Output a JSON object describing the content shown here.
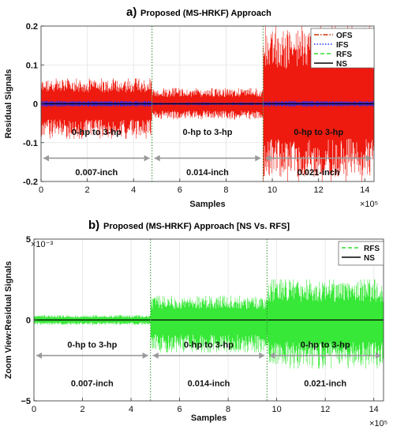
{
  "chart_data": [
    {
      "type": "line",
      "panel_letter": "a)",
      "title": "Proposed (MS-HRKF) Approach",
      "xlabel": "Samples",
      "ylabel": "Residual Signals",
      "x_exponent": "×10⁵",
      "xlim": [
        0,
        14.4
      ],
      "ylim": [
        -0.2,
        0.2
      ],
      "x_ticks": [
        0,
        2,
        4,
        6,
        8,
        10,
        12,
        14
      ],
      "x_tick_labels": [
        "0",
        "2",
        "4",
        "6",
        "8",
        "10",
        "12",
        "14"
      ],
      "y_ticks": [
        -0.2,
        -0.1,
        0,
        0.1,
        0.2
      ],
      "y_tick_labels": [
        "-0.2",
        "-0.1",
        "0",
        "0.1",
        "0.2"
      ],
      "grid": true,
      "legend_position": "top-right",
      "series": [
        {
          "name": "OFS",
          "color": "#cc3300",
          "dash": "dashdot"
        },
        {
          "name": "IFS",
          "color": "#1f2dff",
          "dash": "dotted"
        },
        {
          "name": "RFS",
          "color": "#33dd33",
          "dash": "dashed"
        },
        {
          "name": "NS",
          "color": "#000000",
          "dash": "solid"
        }
      ],
      "segments": [
        {
          "x_start": 0,
          "x_end": 4.8,
          "load_label": "0-hp to 3-hp",
          "fault_label": "0.007-inch",
          "envelope_max": 0.065,
          "envelope_min": -0.09
        },
        {
          "x_start": 4.8,
          "x_end": 9.6,
          "load_label": "0-hp to 3-hp",
          "fault_label": "0.014-inch",
          "envelope_max": 0.04,
          "envelope_min": -0.04
        },
        {
          "x_start": 9.6,
          "x_end": 14.4,
          "load_label": "0-hp to 3-hp",
          "fault_label": "0.021-inch",
          "envelope_max": 0.2,
          "envelope_min": -0.2
        }
      ],
      "boundaries": [
        4.8,
        9.6
      ]
    },
    {
      "type": "line",
      "panel_letter": "b)",
      "title": "Proposed (MS-HRKF) Approach [NS Vs. RFS]",
      "xlabel": "Samples",
      "ylabel": "Zoom View:Residual Signals",
      "x_exponent": "×10⁵",
      "y_exponent": "×10⁻³",
      "xlim": [
        0,
        14.4
      ],
      "ylim": [
        -5,
        5
      ],
      "x_ticks": [
        0,
        2,
        4,
        6,
        8,
        10,
        12,
        14
      ],
      "x_tick_labels": [
        "0",
        "2",
        "4",
        "6",
        "8",
        "10",
        "12",
        "14"
      ],
      "y_ticks": [
        -5,
        0,
        5
      ],
      "y_tick_labels": [
        "−5",
        "0",
        "5"
      ],
      "grid": true,
      "legend_position": "top-right",
      "series": [
        {
          "name": "RFS",
          "color": "#33dd33",
          "dash": "dashed"
        },
        {
          "name": "NS",
          "color": "#000000",
          "dash": "solid"
        }
      ],
      "segments": [
        {
          "x_start": 0,
          "x_end": 4.8,
          "load_label": "0-hp to 3-hp",
          "fault_label": "0.007-inch",
          "envelope_max": 0.3,
          "envelope_min": -0.3
        },
        {
          "x_start": 4.8,
          "x_end": 9.6,
          "load_label": "0-hp to 3-hp",
          "fault_label": "0.014-inch",
          "envelope_max": 1.5,
          "envelope_min": -2.0
        },
        {
          "x_start": 9.6,
          "x_end": 14.4,
          "load_label": "0-hp to 3-hp",
          "fault_label": "0.021-inch",
          "envelope_max": 2.5,
          "envelope_min": -3.0
        }
      ],
      "boundaries": [
        4.8,
        9.6
      ]
    }
  ]
}
